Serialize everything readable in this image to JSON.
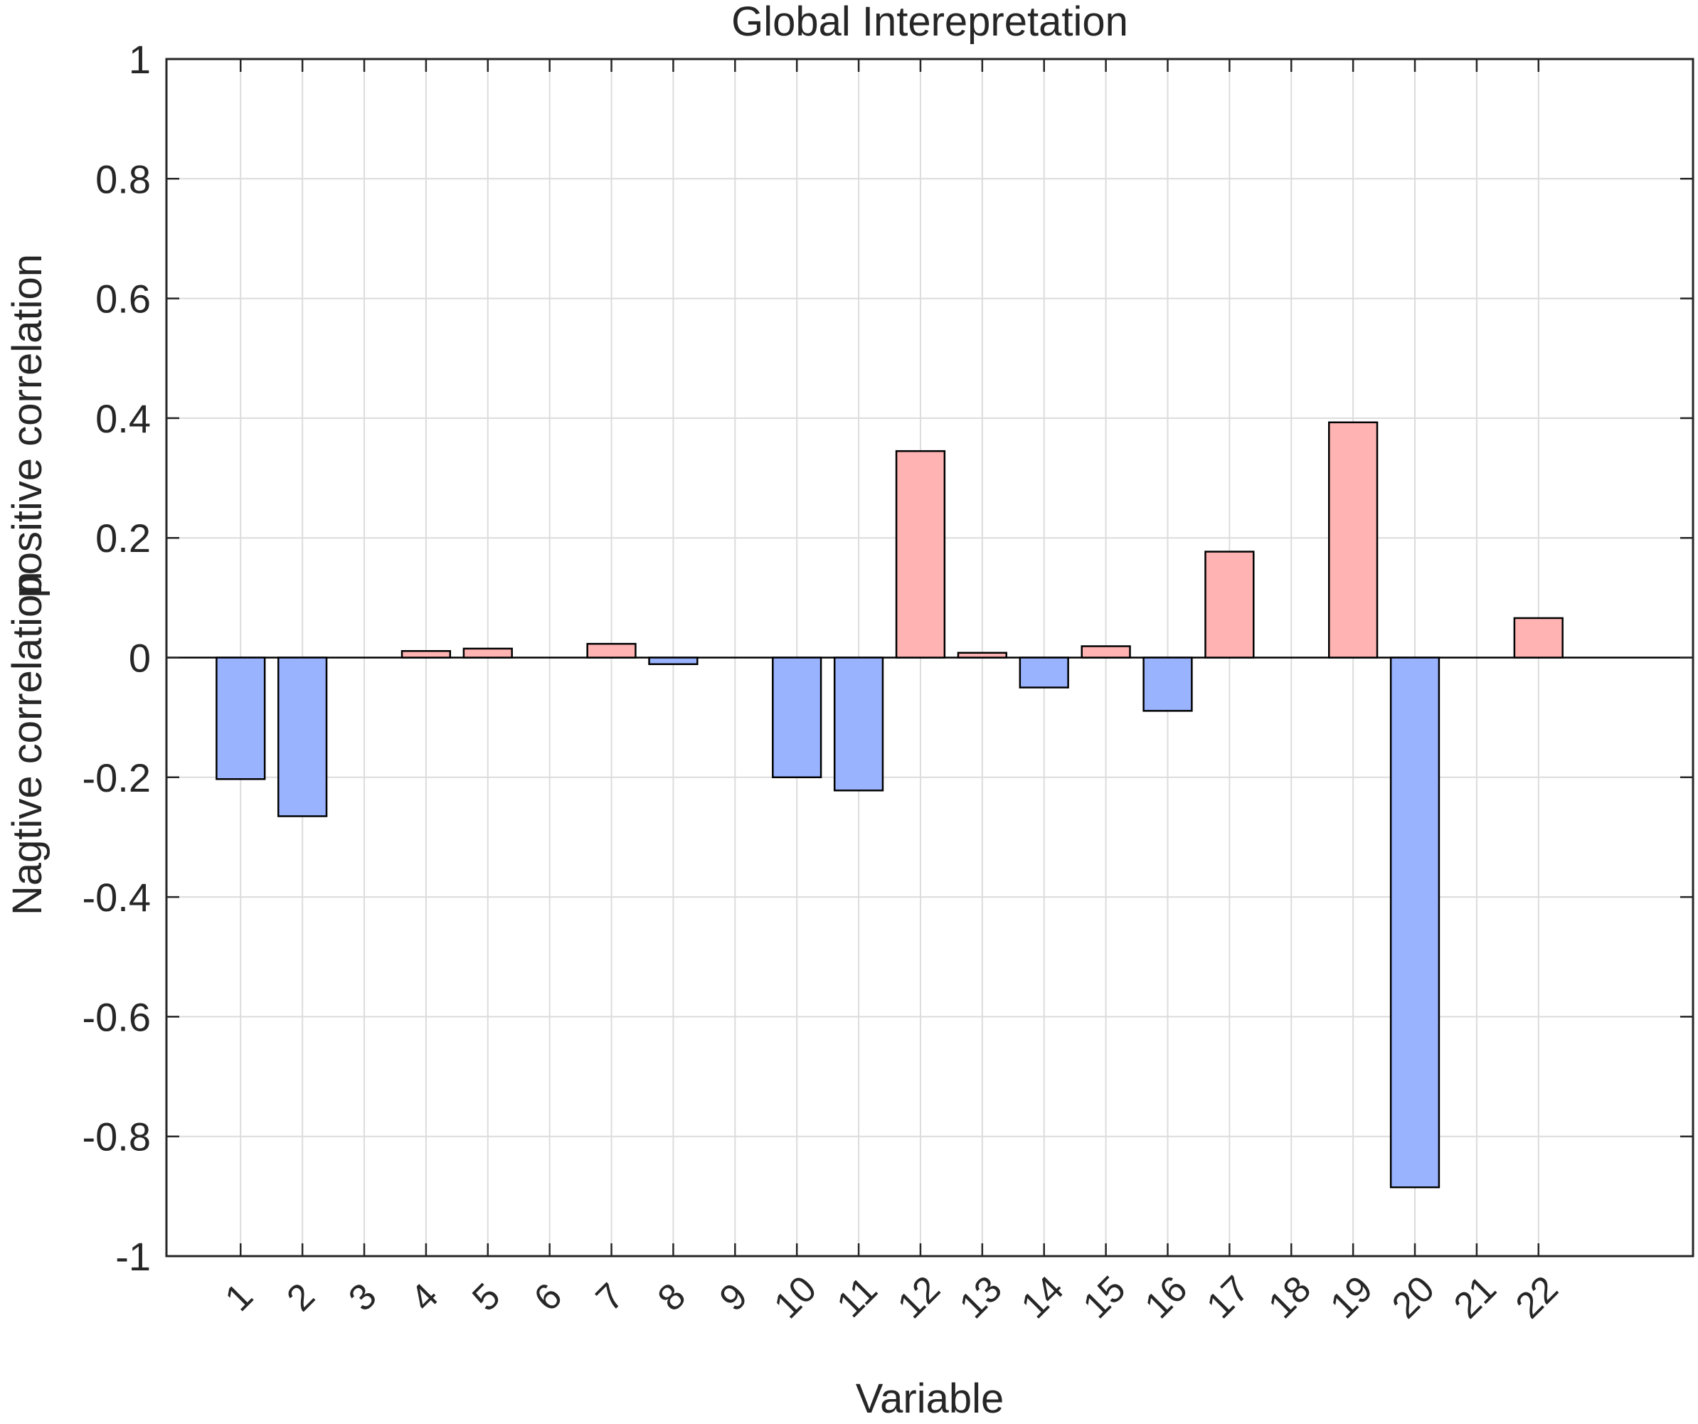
{
  "chart_data": {
    "type": "bar",
    "title": "Global Interepretation",
    "xlabel": "Variable",
    "ylabel_positive": "positive correlation",
    "ylabel_negative": "Nagtive correlation",
    "categories": [
      "1",
      "2",
      "3",
      "4",
      "5",
      "6",
      "7",
      "8",
      "9",
      "10",
      "11",
      "12",
      "13",
      "14",
      "15",
      "16",
      "17",
      "18",
      "19",
      "20",
      "21",
      "22"
    ],
    "values": [
      -0.203,
      -0.265,
      0,
      0.011,
      0.015,
      0,
      0.023,
      -0.011,
      0,
      -0.2,
      -0.222,
      0.345,
      0.008,
      -0.05,
      0.019,
      -0.089,
      0.177,
      0,
      0.393,
      -0.885,
      0,
      0.066
    ],
    "ylim": [
      -1,
      1
    ],
    "yticks": [
      1,
      0.8,
      0.6,
      0.4,
      0.2,
      0,
      -0.2,
      -0.4,
      -0.6,
      -0.8,
      -1
    ],
    "ytick_labels": [
      "1",
      "0.8",
      "0.6",
      "0.4",
      "0.2",
      "0",
      "-0.2",
      "-0.4",
      "-0.6",
      "-0.8",
      "-1"
    ],
    "grid": true,
    "colors": {
      "positive": "#ffb3b3",
      "negative": "#99b3ff",
      "bar_edge": "#000000",
      "grid": "#dcdcdc",
      "axis": "#262626"
    }
  }
}
